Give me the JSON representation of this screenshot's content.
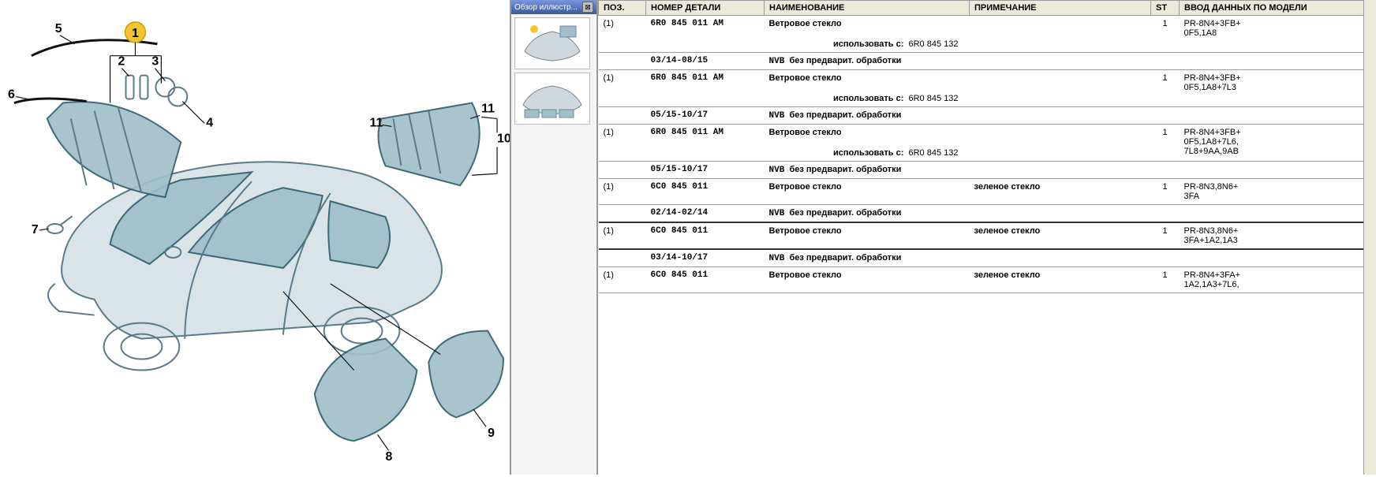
{
  "thumbnails": {
    "title": "Обзор иллюстр...",
    "close_glyph": "⊠"
  },
  "columns": {
    "pos": "ПОЗ.",
    "part": "НОМЕР ДЕТАЛИ",
    "name": "НАИМЕНОВАНИЕ",
    "note": "ПРИМЕЧАНИЕ",
    "st": "ST",
    "model": "ВВОД ДАННЫХ ПО МОДЕЛИ"
  },
  "labels": {
    "use_with": "использовать с:"
  },
  "rows": [
    {
      "pos": "(1)",
      "pn": "6R0 845 011 AM",
      "name": "Ветровое стекло",
      "note": "",
      "use_with_val": "6R0 845 132",
      "st": "1",
      "model": "PR-8N4+3FB+\n0F5,1A8",
      "sub_date": "03/14-08/15",
      "sub_code": "NVB",
      "sub_text": "без предварит. обработки",
      "selected": false
    },
    {
      "pos": "(1)",
      "pn": "6R0 845 011 AM",
      "name": "Ветровое стекло",
      "note": "",
      "use_with_val": "6R0 845 132",
      "st": "1",
      "model": "PR-8N4+3FB+\n0F5,1A8+7L3",
      "sub_date": "05/15-10/17",
      "sub_code": "NVB",
      "sub_text": "без предварит. обработки",
      "selected": false
    },
    {
      "pos": "(1)",
      "pn": "6R0 845 011 AM",
      "name": "Ветровое стекло",
      "note": "",
      "use_with_val": "6R0 845 132",
      "st": "1",
      "model": "PR-8N4+3FB+\n0F5,1A8+7L6,\n7L8+9AA,9AB",
      "sub_date": "05/15-10/17",
      "sub_code": "NVB",
      "sub_text": "без предварит. обработки",
      "selected": false
    },
    {
      "pos": "(1)",
      "pn": "6C0 845 011",
      "name": "Ветровое стекло",
      "note": "зеленое стекло",
      "use_with_val": "",
      "st": "1",
      "model": "PR-8N3,8N6+\n3FA",
      "sub_date": "02/14-02/14",
      "sub_code": "NVB",
      "sub_text": "без предварит. обработки",
      "selected": false
    },
    {
      "pos": "(1)",
      "pn": "6C0 845 011",
      "name": "Ветровое стекло",
      "note": "зеленое стекло",
      "use_with_val": "",
      "st": "1",
      "model": "PR-8N3,8N6+\n3FA+1A2,1A3",
      "sub_date": "03/14-10/17",
      "sub_code": "NVB",
      "sub_text": "без предварит. обработки",
      "selected": true
    },
    {
      "pos": "(1)",
      "pn": "6C0 845 011",
      "name": "Ветровое стекло",
      "note": "зеленое стекло",
      "use_with_val": "",
      "st": "1",
      "model": "PR-8N4+3FA+\n1A2,1A3+7L6,",
      "sub_date": "",
      "sub_code": "",
      "sub_text": "",
      "selected": false
    }
  ],
  "callouts": {
    "c1": "1",
    "c2": "2",
    "c3": "3",
    "c4": "4",
    "c5": "5",
    "c6": "6",
    "c7": "7",
    "c8": "8",
    "c9": "9",
    "c10": "10",
    "c11a": "11",
    "c11b": "11"
  }
}
